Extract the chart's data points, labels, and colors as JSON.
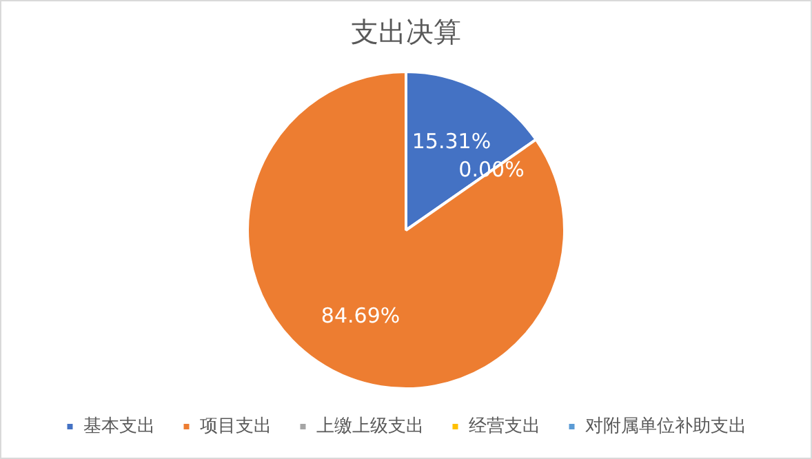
{
  "chart_data": {
    "type": "pie",
    "title": "支出决算",
    "categories": [
      "基本支出",
      "项目支出",
      "上缴上级支出",
      "经营支出",
      "对附属单位补助支出"
    ],
    "values": [
      15.31,
      84.69,
      0,
      0,
      0
    ],
    "colors": [
      "#4472c4",
      "#ed7d31",
      "#a5a5a5",
      "#ffc000",
      "#5b9bd5"
    ],
    "value_labels": [
      "15.31%",
      "84.69%",
      "0.00%",
      null,
      null
    ],
    "legend": "bottom"
  }
}
